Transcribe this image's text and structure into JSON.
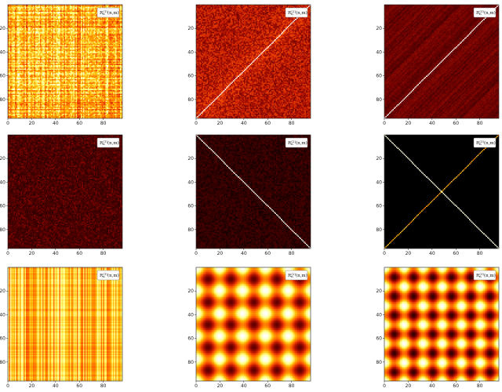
{
  "chart_data": [
    {
      "type": "heatmap",
      "pattern": "noisy-high",
      "xticks": [
        0,
        20,
        40,
        60,
        80
      ],
      "yticks": [
        20,
        40,
        60,
        80
      ],
      "legend": "R_n^{(1)}(n,m)"
    },
    {
      "type": "heatmap",
      "pattern": "anti-diagonal-noisy",
      "xticks": [
        0,
        20,
        40,
        60,
        80
      ],
      "yticks": [
        20,
        40,
        60,
        80
      ],
      "legend": "R_n^{(2)}(n,m)"
    },
    {
      "type": "heatmap",
      "pattern": "anti-diagonal-dark",
      "xticks": [
        0,
        20,
        40,
        60,
        80
      ],
      "yticks": [
        20,
        40,
        60,
        80
      ],
      "legend": "R_n^{(3)}(n,m)"
    },
    {
      "type": "heatmap",
      "pattern": "noise-dark",
      "xticks": [
        0,
        20,
        40,
        60,
        80
      ],
      "yticks": [
        20,
        40,
        60,
        80
      ],
      "legend": "R_n^{(1)}(n,m)"
    },
    {
      "type": "heatmap",
      "pattern": "diagonal",
      "xticks": [
        0,
        20,
        40,
        60,
        80
      ],
      "yticks": [
        20,
        40,
        60,
        80
      ],
      "legend": "R_n^{(2)}(n,m)"
    },
    {
      "type": "heatmap",
      "pattern": "x-cross",
      "xticks": [
        0,
        20,
        40,
        60,
        80
      ],
      "yticks": [
        20,
        40,
        60,
        80
      ],
      "legend": "R_n^{(3)}(n,m)"
    },
    {
      "type": "heatmap",
      "pattern": "stripes",
      "xticks": [
        0,
        20,
        40,
        60,
        80
      ],
      "yticks": [
        20,
        40,
        60,
        80
      ],
      "legend": "R_n^{(1)}(n,m)"
    },
    {
      "type": "heatmap",
      "pattern": "checker",
      "xticks": [
        0,
        20,
        40,
        60,
        80
      ],
      "yticks": [
        20,
        40,
        60,
        80
      ],
      "legend": "R_n^{(2)}(n,m)"
    },
    {
      "type": "heatmap",
      "pattern": "checker-dense",
      "xticks": [
        0,
        20,
        40,
        60,
        80
      ],
      "yticks": [
        20,
        40,
        60,
        80
      ],
      "legend": "R_n^{(3)}(n,m)"
    }
  ],
  "axis": {
    "xlim": [
      0,
      96
    ],
    "ylim": [
      0,
      96
    ]
  },
  "colormap": [
    "#000000",
    "#6b0000",
    "#c41a00",
    "#ff5a00",
    "#ffb300",
    "#ffff80",
    "#ffffff"
  ]
}
